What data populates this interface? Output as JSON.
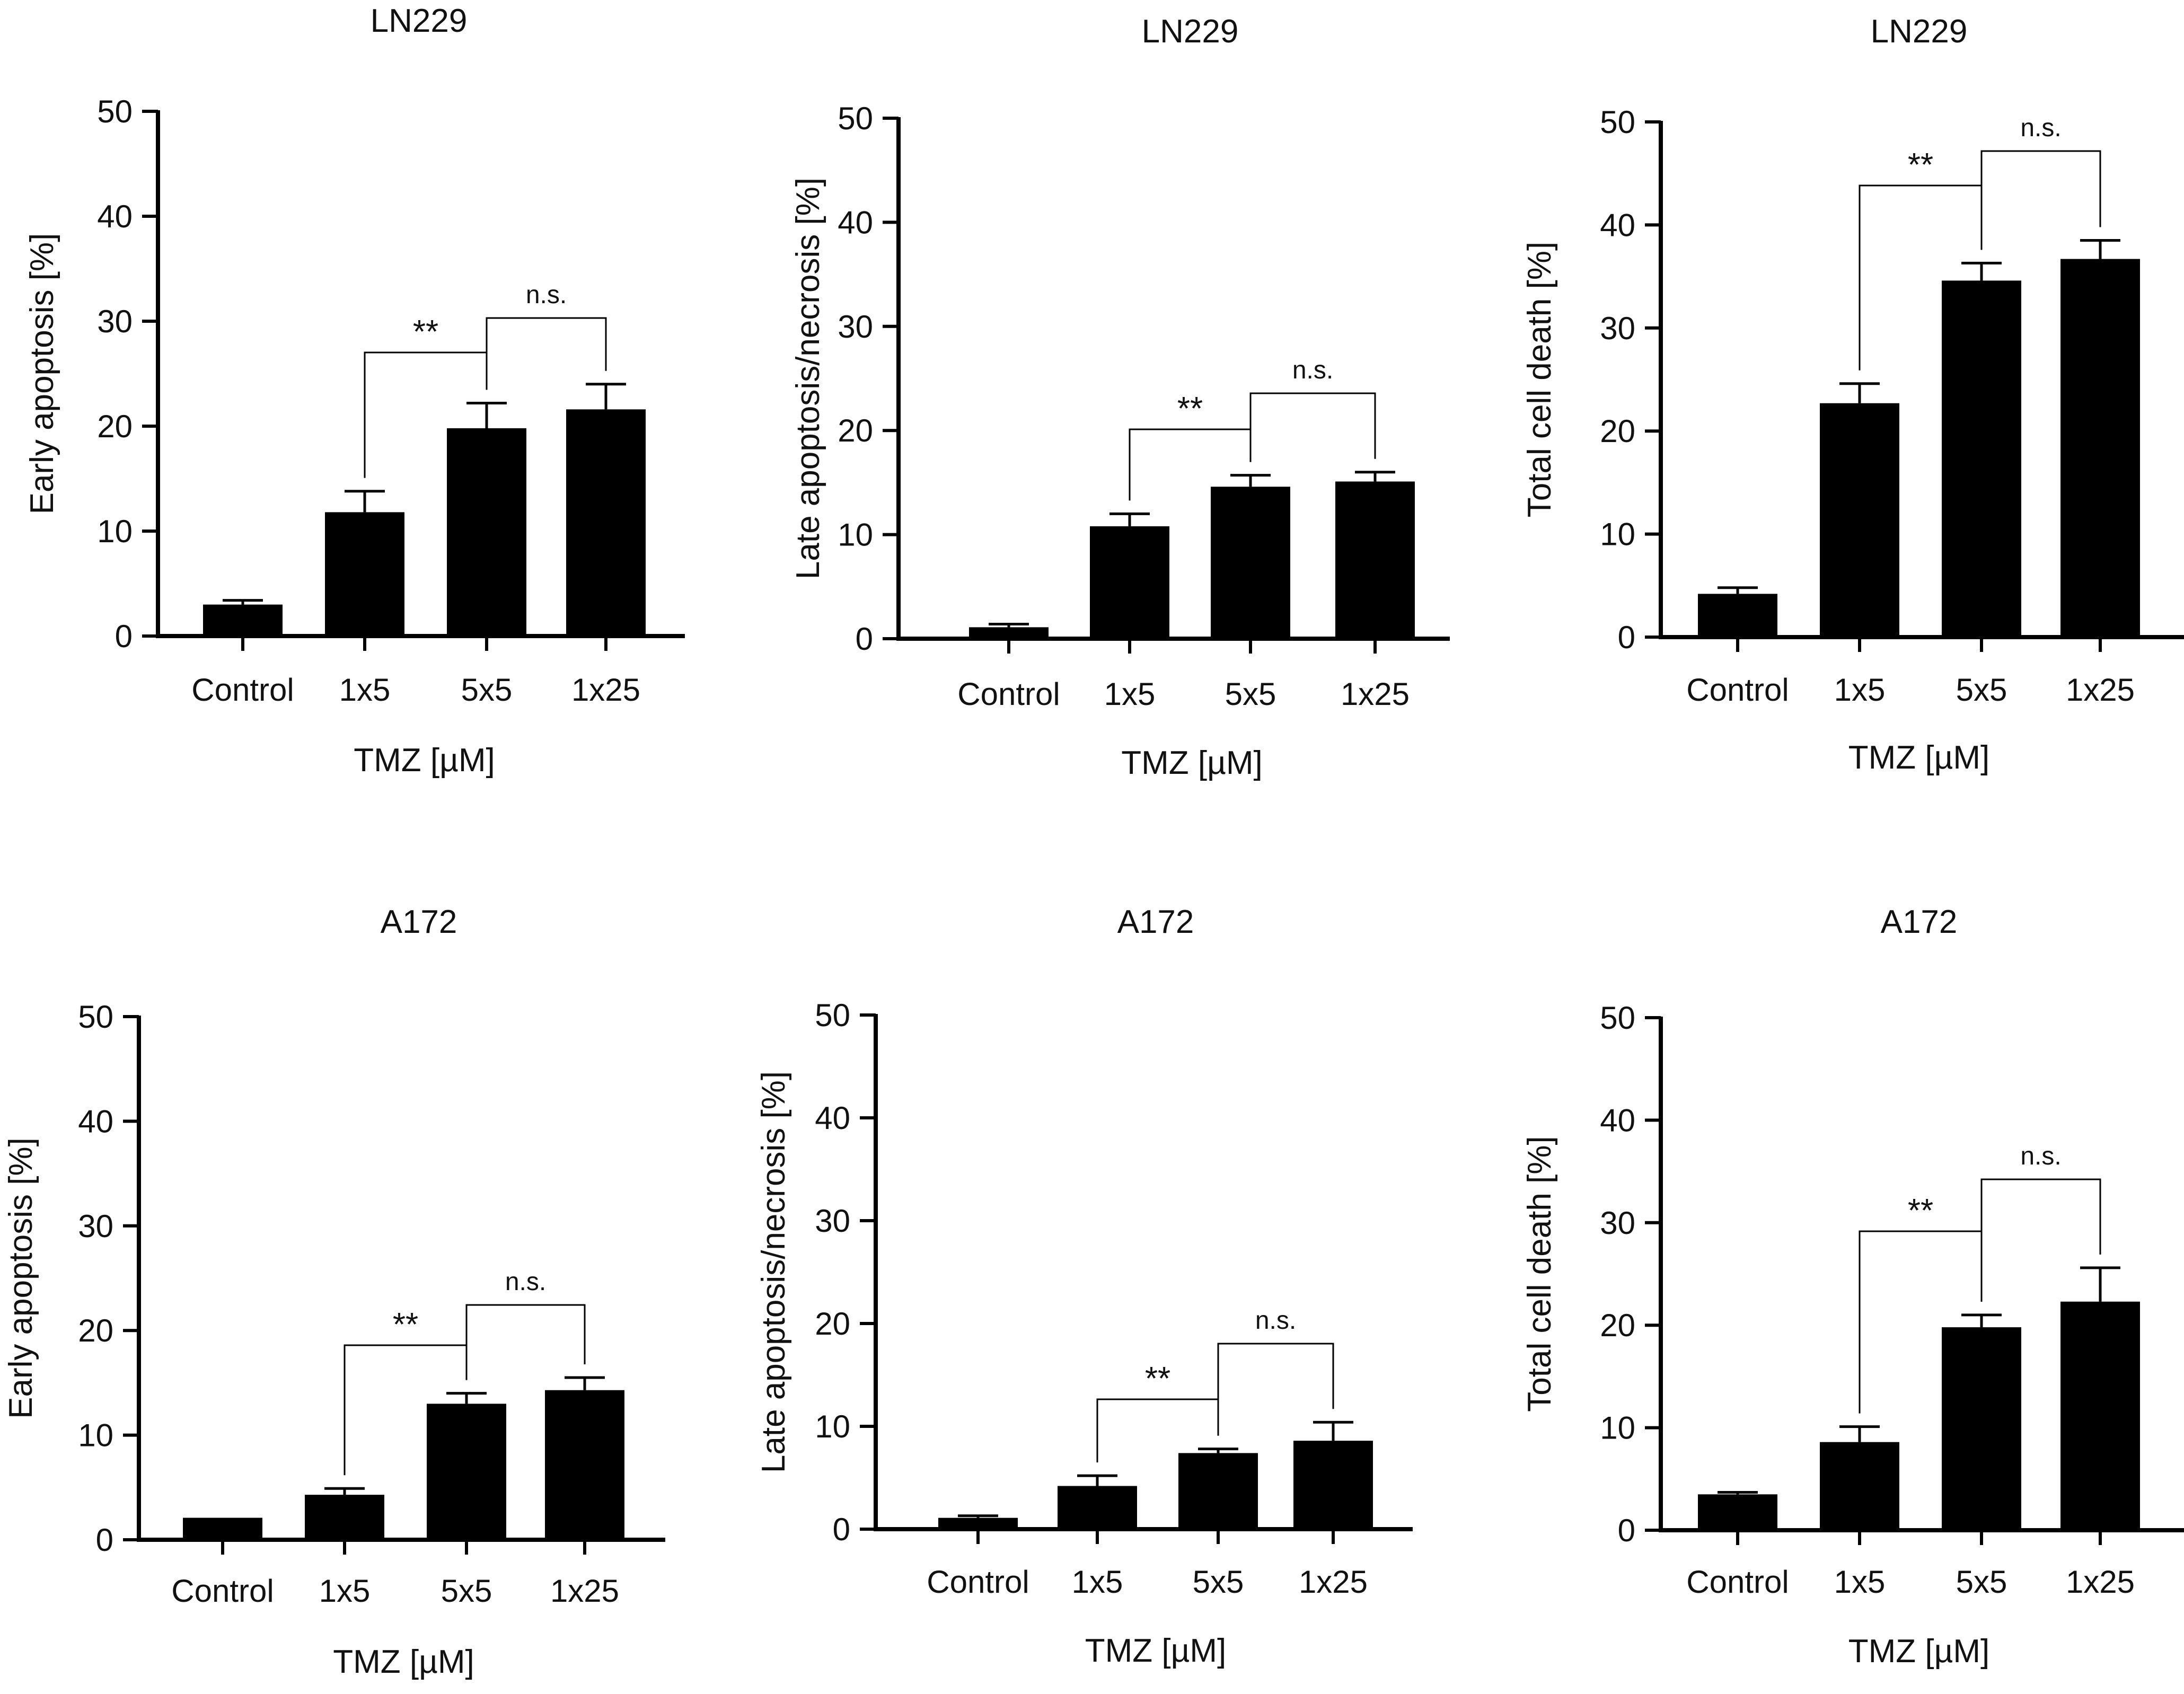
{
  "figure": {
    "panels": [
      {
        "id": "ln229-early",
        "title": "LN229",
        "ylabel": "Early apoptosis [%]",
        "xlabel": "TMZ [µM]",
        "yticks": [
          "0",
          "10",
          "20",
          "30",
          "40",
          "50"
        ],
        "categories": [
          "Control",
          "1x5",
          "5x5",
          "1x25"
        ],
        "brackets": [
          {
            "label": "**",
            "from": "1x5",
            "to": "5x5"
          },
          {
            "label": "n.s.",
            "from": "5x5",
            "to": "1x25"
          }
        ]
      },
      {
        "id": "ln229-late",
        "title": "LN229",
        "ylabel": "Late apoptosis/necrosis [%]",
        "xlabel": "TMZ [µM]",
        "yticks": [
          "0",
          "10",
          "20",
          "30",
          "40",
          "50"
        ],
        "categories": [
          "Control",
          "1x5",
          "5x5",
          "1x25"
        ],
        "brackets": [
          {
            "label": "**",
            "from": "1x5",
            "to": "5x5"
          },
          {
            "label": "n.s.",
            "from": "5x5",
            "to": "1x25"
          }
        ]
      },
      {
        "id": "ln229-total",
        "title": "LN229",
        "ylabel": "Total cell death [%]",
        "xlabel": "TMZ [µM]",
        "yticks": [
          "0",
          "10",
          "20",
          "30",
          "40",
          "50"
        ],
        "categories": [
          "Control",
          "1x5",
          "5x5",
          "1x25"
        ],
        "brackets": [
          {
            "label": "**",
            "from": "1x5",
            "to": "5x5"
          },
          {
            "label": "n.s.",
            "from": "5x5",
            "to": "1x25"
          }
        ]
      },
      {
        "id": "a172-early",
        "title": "A172",
        "ylabel": "Early apoptosis [%]",
        "xlabel": "TMZ [µM]",
        "yticks": [
          "0",
          "10",
          "20",
          "30",
          "40",
          "50"
        ],
        "categories": [
          "Control",
          "1x5",
          "5x5",
          "1x25"
        ],
        "brackets": [
          {
            "label": "**",
            "from": "1x5",
            "to": "5x5"
          },
          {
            "label": "n.s.",
            "from": "5x5",
            "to": "1x25"
          }
        ]
      },
      {
        "id": "a172-late",
        "title": "A172",
        "ylabel": "Late apoptosis/necrosis [%]",
        "xlabel": "TMZ [µM]",
        "yticks": [
          "0",
          "10",
          "20",
          "30",
          "40",
          "50"
        ],
        "categories": [
          "Control",
          "1x5",
          "5x5",
          "1x25"
        ],
        "brackets": [
          {
            "label": "**",
            "from": "1x5",
            "to": "5x5"
          },
          {
            "label": "n.s.",
            "from": "5x5",
            "to": "1x25"
          }
        ]
      },
      {
        "id": "a172-total",
        "title": "A172",
        "ylabel": "Total cell death [%]",
        "xlabel": "TMZ [µM]",
        "yticks": [
          "0",
          "10",
          "20",
          "30",
          "40",
          "50"
        ],
        "categories": [
          "Control",
          "1x5",
          "5x5",
          "1x25"
        ],
        "brackets": [
          {
            "label": "**",
            "from": "1x5",
            "to": "5x5"
          },
          {
            "label": "n.s.",
            "from": "5x5",
            "to": "1x25"
          }
        ]
      }
    ]
  },
  "chart_data": [
    {
      "type": "bar",
      "title": "LN229",
      "xlabel": "TMZ [µM]",
      "ylabel": "Early apoptosis [%]",
      "categories": [
        "Control",
        "1x5",
        "5x5",
        "1x25"
      ],
      "values": [
        3.0,
        11.8,
        19.8,
        21.6
      ],
      "errors": [
        0.4,
        2.0,
        2.4,
        2.4
      ],
      "ylim": [
        0,
        50
      ],
      "bar_color": "#000000"
    },
    {
      "type": "bar",
      "title": "LN229",
      "xlabel": "TMZ [µM]",
      "ylabel": "Late apoptosis/necrosis [%]",
      "categories": [
        "Control",
        "1x5",
        "5x5",
        "1x25"
      ],
      "values": [
        1.1,
        10.8,
        14.6,
        15.1
      ],
      "errors": [
        0.3,
        1.2,
        1.1,
        0.9
      ],
      "ylim": [
        0,
        50
      ],
      "bar_color": "#000000"
    },
    {
      "type": "bar",
      "title": "LN229",
      "xlabel": "TMZ [µM]",
      "ylabel": "Total cell death [%]",
      "categories": [
        "Control",
        "1x5",
        "5x5",
        "1x25"
      ],
      "values": [
        4.2,
        22.7,
        34.6,
        36.7
      ],
      "errors": [
        0.6,
        1.9,
        1.7,
        1.8
      ],
      "ylim": [
        0,
        50
      ],
      "bar_color": "#000000"
    },
    {
      "type": "bar",
      "title": "A172",
      "xlabel": "TMZ [µM]",
      "ylabel": "Early apoptosis [%]",
      "categories": [
        "Control",
        "1x5",
        "5x5",
        "1x25"
      ],
      "values": [
        2.1,
        4.3,
        13.0,
        14.3
      ],
      "errors": [
        0.0,
        0.6,
        1.0,
        1.2
      ],
      "ylim": [
        0,
        50
      ],
      "bar_color": "#000000"
    },
    {
      "type": "bar",
      "title": "A172",
      "xlabel": "TMZ [µM]",
      "ylabel": "Late apoptosis/necrosis [%]",
      "categories": [
        "Control",
        "1x5",
        "5x5",
        "1x25"
      ],
      "values": [
        1.1,
        4.2,
        7.4,
        8.6
      ],
      "errors": [
        0.2,
        1.0,
        0.4,
        1.8
      ],
      "ylim": [
        0,
        50
      ],
      "bar_color": "#000000"
    },
    {
      "type": "bar",
      "title": "A172",
      "xlabel": "TMZ [µM]",
      "ylabel": "Total cell death [%]",
      "categories": [
        "Control",
        "1x5",
        "5x5",
        "1x25"
      ],
      "values": [
        3.5,
        8.6,
        19.8,
        22.3
      ],
      "errors": [
        0.2,
        1.5,
        1.2,
        3.3
      ],
      "ylim": [
        0,
        50
      ],
      "bar_color": "#000000"
    }
  ]
}
